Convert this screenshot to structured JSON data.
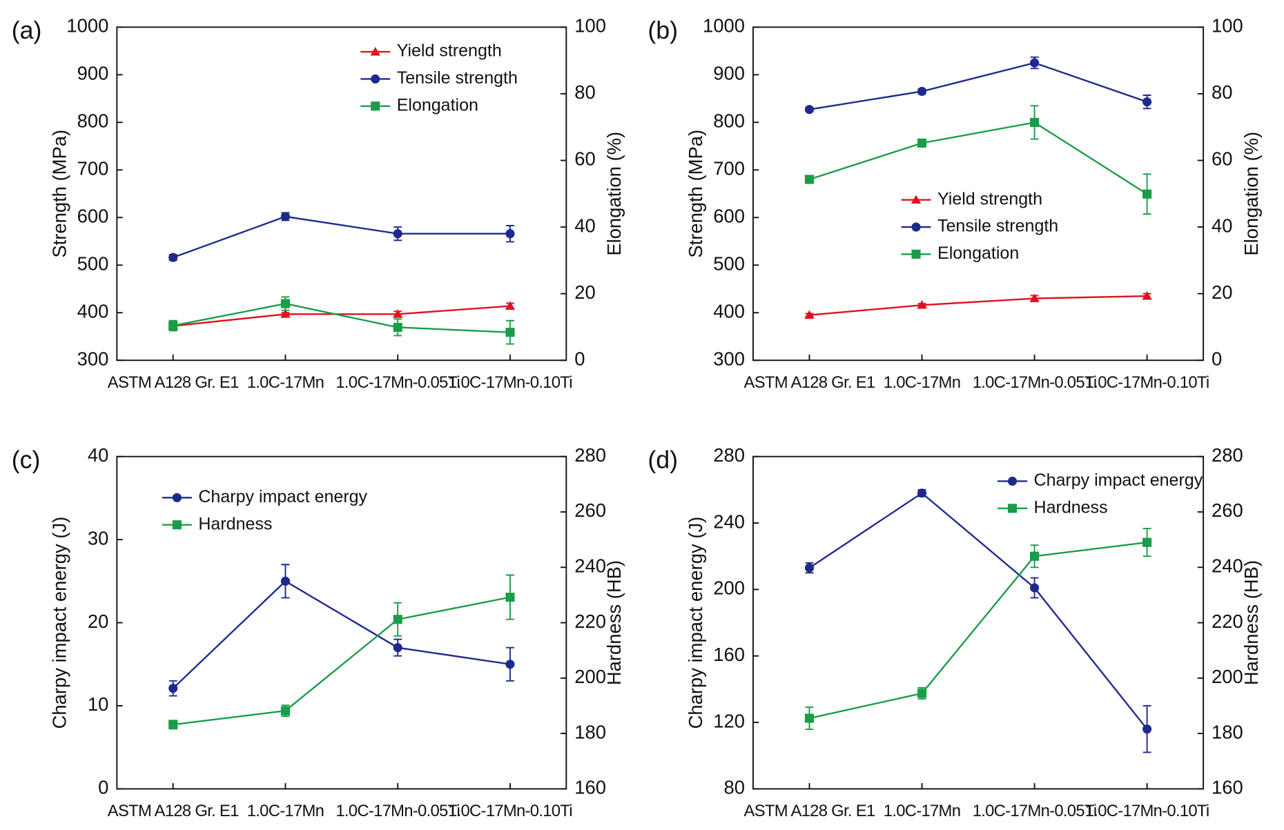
{
  "chart_data": [
    {
      "type": "line",
      "panel_label": "(a)",
      "legend": "upper right",
      "categories": [
        "ASTM A128 Gr. E1",
        "1.0C-17Mn",
        "1.0C-17Mn-0.05Ti",
        "1.0C-17Mn-0.10Ti"
      ],
      "ylabel": "Strength (MPa)",
      "y2label": "Elongation (%)",
      "ylim": [
        300,
        1000
      ],
      "yticks": [
        300,
        400,
        500,
        600,
        700,
        800,
        900,
        1000
      ],
      "y2lim": [
        0,
        100
      ],
      "y2ticks": [
        0,
        20,
        40,
        60,
        80,
        100
      ],
      "series": [
        {
          "name": "Yield strength",
          "color": "#e0101e",
          "marker": "triangle",
          "values": [
            372,
            397,
            397,
            414
          ],
          "errors": [
            3,
            3,
            6,
            6
          ]
        },
        {
          "name": "Tensile strength",
          "color": "#1d2a8c",
          "marker": "circle",
          "values": [
            516,
            602,
            566,
            566
          ],
          "errors": [
            6,
            8,
            14,
            17
          ]
        },
        {
          "name": "Elongation",
          "color": "#1a9c48",
          "marker": "square",
          "axis": "y2",
          "values": [
            10.4,
            17,
            9.9,
            8.4
          ],
          "errors": [
            1.5,
            2,
            2.5,
            3.5
          ]
        }
      ]
    },
    {
      "type": "line",
      "panel_label": "(b)",
      "legend": "center",
      "categories": [
        "ASTM A128 Gr. E1",
        "1.0C-17Mn",
        "1.0C-17Mn-0.05Ti",
        "1.0C-17Mn-0.10Ti"
      ],
      "ylabel": "Strength (MPa)",
      "y2label": "Elongation (%)",
      "ylim": [
        300,
        1000
      ],
      "yticks": [
        300,
        400,
        500,
        600,
        700,
        800,
        900,
        1000
      ],
      "y2lim": [
        0,
        100
      ],
      "y2ticks": [
        0,
        20,
        40,
        60,
        80,
        100
      ],
      "series": [
        {
          "name": "Yield strength",
          "color": "#e0101e",
          "marker": "triangle",
          "values": [
            395,
            416,
            430,
            435
          ],
          "errors": [
            3,
            3,
            6,
            5
          ]
        },
        {
          "name": "Tensile strength",
          "color": "#1d2a8c",
          "marker": "circle",
          "values": [
            827,
            865,
            925,
            843
          ],
          "errors": [
            4,
            5,
            12,
            14
          ]
        },
        {
          "name": "Elongation",
          "color": "#1a9c48",
          "marker": "square",
          "axis": "y2",
          "values": [
            54.3,
            65.2,
            71.4,
            49.9
          ],
          "errors": [
            0.8,
            1,
            5,
            6
          ]
        }
      ]
    },
    {
      "type": "line",
      "panel_label": "(c)",
      "legend": "upper left",
      "categories": [
        "ASTM A128 Gr. E1",
        "1.0C-17Mn",
        "1.0C-17Mn-0.05Ti",
        "1.0C-17Mn-0.10Ti"
      ],
      "ylabel": "Charpy impact energy (J)",
      "y2label": "Hardness (HB)",
      "ylim": [
        0,
        40
      ],
      "yticks": [
        0,
        10,
        20,
        30,
        40
      ],
      "y2lim": [
        160,
        280
      ],
      "y2ticks": [
        160,
        180,
        200,
        220,
        240,
        260,
        280
      ],
      "series": [
        {
          "name": "Charpy impact energy",
          "color": "#1d2a8c",
          "marker": "circle",
          "values": [
            12.1,
            25,
            17,
            15
          ],
          "errors": [
            0.9,
            2,
            1,
            2
          ]
        },
        {
          "name": "Hardness",
          "color": "#1a9c48",
          "marker": "square",
          "axis": "y2",
          "values": [
            183.2,
            188.2,
            221.2,
            229.2
          ],
          "errors": [
            1.5,
            2,
            6,
            8
          ]
        }
      ]
    },
    {
      "type": "line",
      "panel_label": "(d)",
      "legend": "upper right",
      "categories": [
        "ASTM A128 Gr. E1",
        "1.0C-17Mn",
        "1.0C-17Mn-0.05Ti",
        "1.0C-17Mn-0.10Ti"
      ],
      "ylabel": "Charpy impact energy (J)",
      "y2label": "Hardness (HB)",
      "ylim": [
        80,
        280
      ],
      "yticks": [
        80,
        120,
        160,
        200,
        240,
        280
      ],
      "y2lim": [
        160,
        280
      ],
      "y2ticks": [
        160,
        180,
        200,
        220,
        240,
        260,
        280
      ],
      "series": [
        {
          "name": "Charpy impact energy",
          "color": "#1d2a8c",
          "marker": "circle",
          "values": [
            213,
            258,
            201,
            116
          ],
          "errors": [
            3,
            2,
            6,
            14
          ]
        },
        {
          "name": "Hardness",
          "color": "#1a9c48",
          "marker": "square",
          "axis": "y2",
          "values": [
            185.5,
            194.5,
            244,
            249
          ],
          "errors": [
            4,
            2,
            4,
            5
          ]
        }
      ]
    }
  ]
}
